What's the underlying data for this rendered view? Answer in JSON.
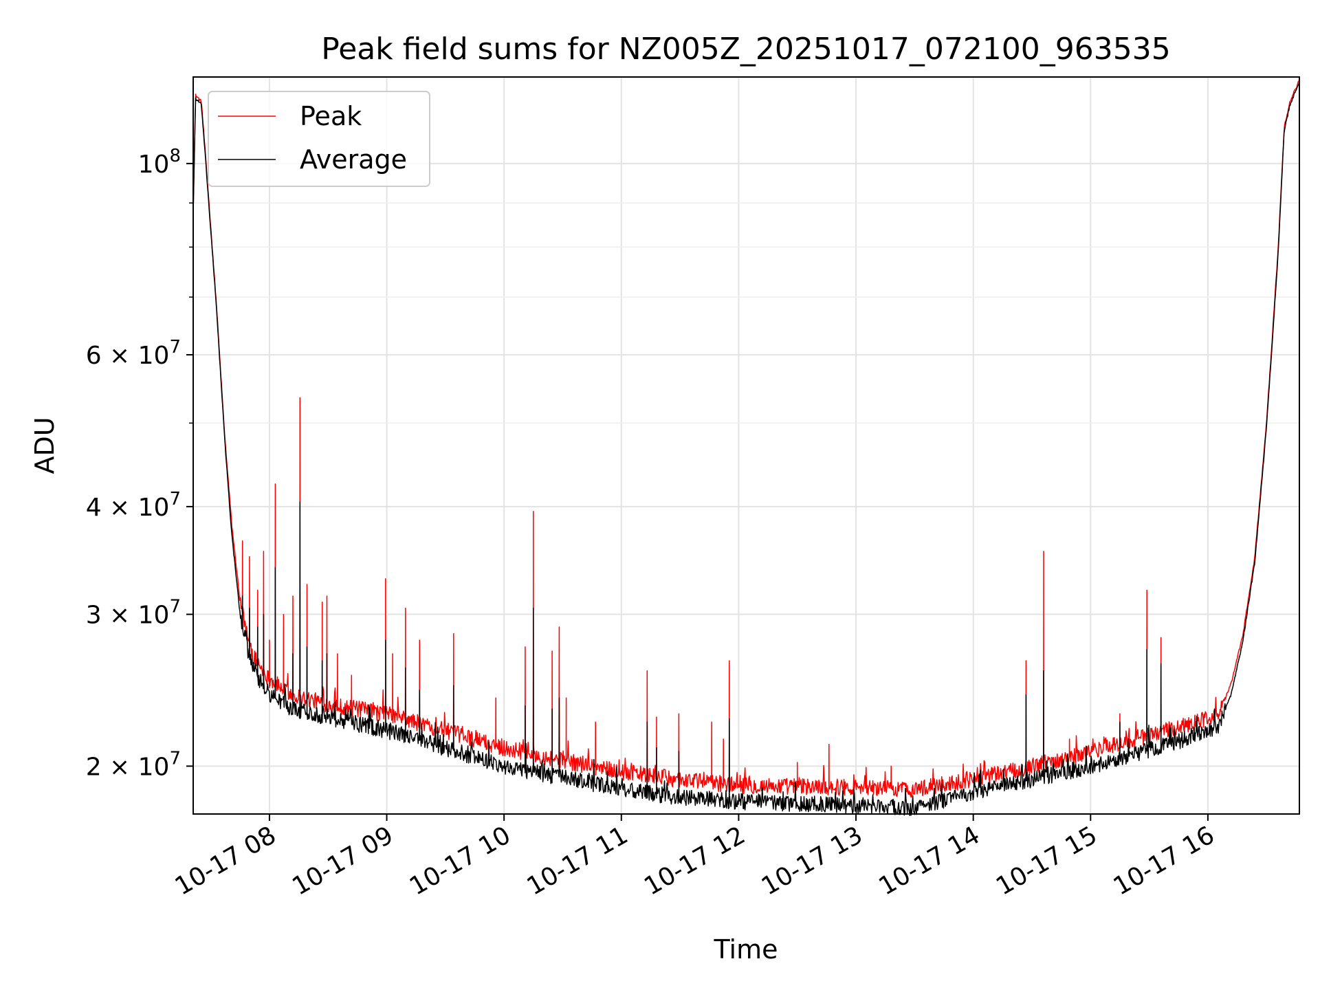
{
  "chart_data": {
    "type": "line",
    "title": "Peak field sums for NZ005Z_20251017_072100_963535",
    "xlabel": "Time",
    "ylabel": "ADU",
    "y_scale": "log",
    "ylim": [
      17600000,
      126000000
    ],
    "xlim_hours": [
      7.35,
      16.78
    ],
    "grid": true,
    "legend_position": "top-left",
    "x_ticks": [
      {
        "hour": 8,
        "label": "10-17 08"
      },
      {
        "hour": 9,
        "label": "10-17 09"
      },
      {
        "hour": 10,
        "label": "10-17 10"
      },
      {
        "hour": 11,
        "label": "10-17 11"
      },
      {
        "hour": 12,
        "label": "10-17 12"
      },
      {
        "hour": 13,
        "label": "10-17 13"
      },
      {
        "hour": 14,
        "label": "10-17 14"
      },
      {
        "hour": 15,
        "label": "10-17 15"
      },
      {
        "hour": 16,
        "label": "10-17 16"
      }
    ],
    "y_major_ticks": [
      {
        "value": 100000000,
        "base": "10",
        "exp": "8"
      },
      {
        "value": 60000000,
        "base": "6 × 10",
        "exp": "7"
      },
      {
        "value": 40000000,
        "base": "4 × 10",
        "exp": "7"
      },
      {
        "value": 30000000,
        "base": "3 × 10",
        "exp": "7"
      },
      {
        "value": 20000000,
        "base": "2 × 10",
        "exp": "7"
      }
    ],
    "y_minor_ticks": [
      50000000,
      70000000,
      80000000,
      90000000
    ],
    "series": [
      {
        "name": "Peak",
        "color": "#ff0000",
        "baseline": {
          "hours": [
            7.35,
            7.37,
            7.42,
            7.48,
            7.55,
            7.62,
            7.68,
            7.75,
            7.85,
            8.0,
            8.2,
            8.5,
            9.0,
            9.5,
            10.0,
            10.5,
            11.0,
            11.5,
            12.0,
            12.5,
            13.0,
            13.5,
            14.0,
            14.5,
            15.0,
            15.5,
            15.8,
            16.1,
            16.2,
            16.3,
            16.4,
            16.5,
            16.6,
            16.65,
            16.7,
            16.78
          ],
          "values": [
            88000000,
            120000000,
            118000000,
            92000000,
            68000000,
            48000000,
            38000000,
            31000000,
            27000000,
            25200000,
            24200000,
            23600000,
            23000000,
            22000000,
            21000000,
            20300000,
            19700000,
            19300000,
            19000000,
            18950000,
            18900000,
            18800000,
            19300000,
            20000000,
            20800000,
            21700000,
            22300000,
            23000000,
            25000000,
            28500000,
            35000000,
            50000000,
            80000000,
            110000000,
            118000000,
            125000000
          ]
        },
        "spikes": [
          {
            "hour": 7.77,
            "value": 36500000
          },
          {
            "hour": 7.83,
            "value": 35000000
          },
          {
            "hour": 7.9,
            "value": 32000000
          },
          {
            "hour": 7.95,
            "value": 35500000
          },
          {
            "hour": 8.0,
            "value": 28000000
          },
          {
            "hour": 8.05,
            "value": 42500000
          },
          {
            "hour": 8.12,
            "value": 30000000
          },
          {
            "hour": 8.2,
            "value": 31500000
          },
          {
            "hour": 8.26,
            "value": 53500000
          },
          {
            "hour": 8.32,
            "value": 32500000
          },
          {
            "hour": 8.45,
            "value": 31000000
          },
          {
            "hour": 8.49,
            "value": 31500000
          },
          {
            "hour": 8.58,
            "value": 27000000
          },
          {
            "hour": 8.7,
            "value": 25500000
          },
          {
            "hour": 8.99,
            "value": 33000000
          },
          {
            "hour": 9.05,
            "value": 27000000
          },
          {
            "hour": 9.16,
            "value": 30500000
          },
          {
            "hour": 9.28,
            "value": 28000000
          },
          {
            "hour": 9.57,
            "value": 28500000
          },
          {
            "hour": 9.93,
            "value": 24000000
          },
          {
            "hour": 10.18,
            "value": 27500000
          },
          {
            "hour": 10.25,
            "value": 39500000
          },
          {
            "hour": 10.41,
            "value": 27200000
          },
          {
            "hour": 10.47,
            "value": 29000000
          },
          {
            "hour": 10.53,
            "value": 24000000
          },
          {
            "hour": 10.78,
            "value": 22500000
          },
          {
            "hour": 11.22,
            "value": 25800000
          },
          {
            "hour": 11.3,
            "value": 22800000
          },
          {
            "hour": 11.49,
            "value": 23000000
          },
          {
            "hour": 11.77,
            "value": 22500000
          },
          {
            "hour": 11.87,
            "value": 21500000
          },
          {
            "hour": 11.92,
            "value": 26500000
          },
          {
            "hour": 12.5,
            "value": 20200000
          },
          {
            "hour": 12.77,
            "value": 21200000
          },
          {
            "hour": 13.3,
            "value": 20000000
          },
          {
            "hour": 14.45,
            "value": 26500000
          },
          {
            "hour": 14.6,
            "value": 35500000
          },
          {
            "hour": 14.82,
            "value": 21500000
          },
          {
            "hour": 15.25,
            "value": 23000000
          },
          {
            "hour": 15.48,
            "value": 32000000
          },
          {
            "hour": 15.6,
            "value": 28200000
          }
        ]
      },
      {
        "name": "Average",
        "color": "#000000",
        "baseline": {
          "hours": [
            7.35,
            7.37,
            7.42,
            7.48,
            7.55,
            7.62,
            7.68,
            7.75,
            7.85,
            8.0,
            8.2,
            8.5,
            9.0,
            9.5,
            10.0,
            10.5,
            11.0,
            11.5,
            12.0,
            12.5,
            13.0,
            13.5,
            14.0,
            14.5,
            15.0,
            15.5,
            15.8,
            16.1,
            16.2,
            16.3,
            16.4,
            16.5,
            16.6,
            16.65,
            16.7,
            16.78
          ],
          "values": [
            87500000,
            119000000,
            117000000,
            91000000,
            67500000,
            47500000,
            37000000,
            30000000,
            26000000,
            24200000,
            23300000,
            22800000,
            22000000,
            21000000,
            20000000,
            19400000,
            18800000,
            18400000,
            18200000,
            18100000,
            18000000,
            17900000,
            18600000,
            19300000,
            20000000,
            20900000,
            21500000,
            22300000,
            24300000,
            28000000,
            34500000,
            49500000,
            79000000,
            109000000,
            117000000,
            124500000
          ]
        },
        "spikes": [
          {
            "hour": 7.77,
            "value": 31500000
          },
          {
            "hour": 7.83,
            "value": 30500000
          },
          {
            "hour": 7.9,
            "value": 29000000
          },
          {
            "hour": 7.95,
            "value": 30000000
          },
          {
            "hour": 8.05,
            "value": 34000000
          },
          {
            "hour": 8.2,
            "value": 27000000
          },
          {
            "hour": 8.26,
            "value": 40500000
          },
          {
            "hour": 8.32,
            "value": 27500000
          },
          {
            "hour": 8.45,
            "value": 26500000
          },
          {
            "hour": 8.49,
            "value": 27000000
          },
          {
            "hour": 8.99,
            "value": 28000000
          },
          {
            "hour": 9.16,
            "value": 26000000
          },
          {
            "hour": 9.28,
            "value": 24500000
          },
          {
            "hour": 9.57,
            "value": 24800000
          },
          {
            "hour": 10.18,
            "value": 23500000
          },
          {
            "hour": 10.25,
            "value": 30500000
          },
          {
            "hour": 10.41,
            "value": 23300000
          },
          {
            "hour": 10.47,
            "value": 24000000
          },
          {
            "hour": 11.22,
            "value": 22500000
          },
          {
            "hour": 11.3,
            "value": 21000000
          },
          {
            "hour": 11.49,
            "value": 20800000
          },
          {
            "hour": 11.92,
            "value": 22700000
          },
          {
            "hour": 14.45,
            "value": 24200000
          },
          {
            "hour": 14.6,
            "value": 25800000
          },
          {
            "hour": 15.25,
            "value": 22500000
          },
          {
            "hour": 15.48,
            "value": 27300000
          },
          {
            "hour": 15.6,
            "value": 26300000
          }
        ]
      }
    ]
  }
}
